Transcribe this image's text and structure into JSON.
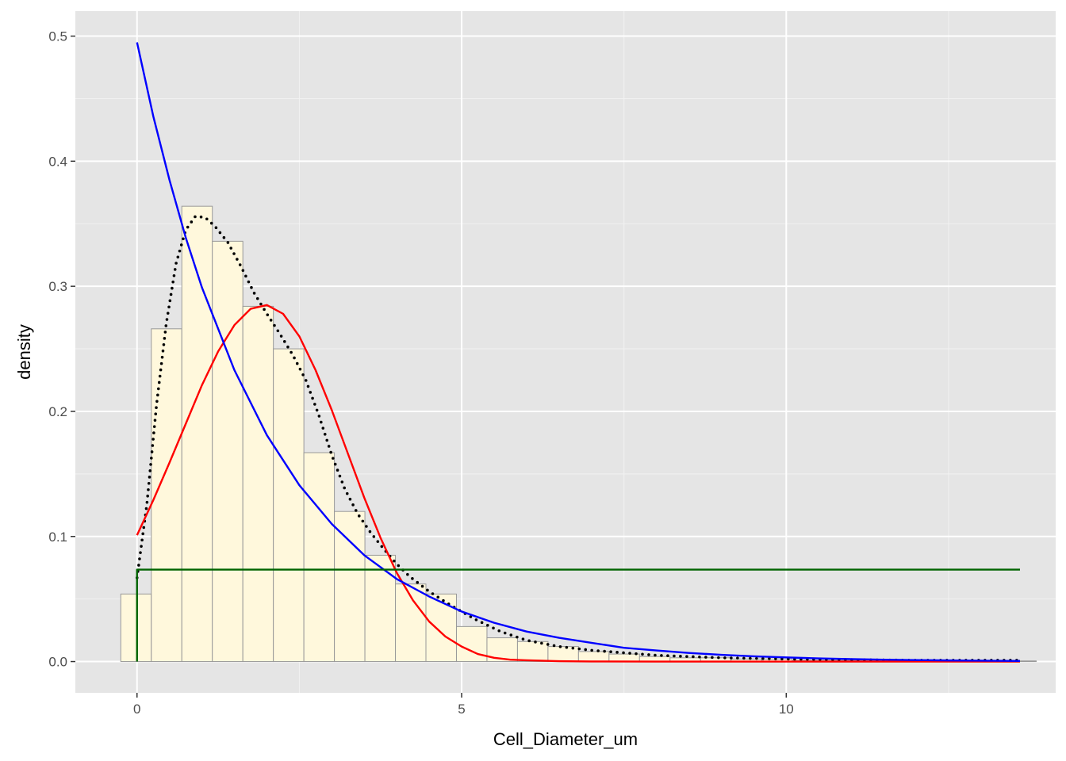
{
  "chart_data": {
    "type": "bar",
    "xlabel": "Cell_Diameter_um",
    "ylabel": "density",
    "xlim": [
      -0.95,
      14.15
    ],
    "ylim": [
      -0.025,
      0.52
    ],
    "x_ticks": [
      0,
      5,
      10
    ],
    "x_tick_labels": [
      "0",
      "5",
      "10"
    ],
    "y_ticks": [
      0.0,
      0.1,
      0.2,
      0.3,
      0.4,
      0.5
    ],
    "y_tick_labels": [
      "0.0",
      "0.1",
      "0.2",
      "0.3",
      "0.4",
      "0.5"
    ],
    "grid": true,
    "histogram": {
      "bin_width": 0.47,
      "bins_start": [
        -0.25,
        0.22,
        0.69,
        1.16,
        1.63,
        2.1,
        2.57,
        3.04,
        3.51,
        3.98,
        4.45,
        4.92,
        5.39,
        5.86,
        6.33,
        6.8,
        7.27,
        7.74,
        8.21,
        8.68,
        9.15,
        9.62,
        10.09,
        10.56,
        11.03,
        11.5,
        11.97,
        12.44,
        12.91,
        13.38
      ],
      "density": [
        0.054,
        0.266,
        0.364,
        0.336,
        0.284,
        0.25,
        0.167,
        0.12,
        0.085,
        0.062,
        0.054,
        0.028,
        0.019,
        0.016,
        0.012,
        0.008,
        0.006,
        0.004,
        0.003,
        0.003,
        0.002,
        0.002,
        0.001,
        0.001,
        0.001,
        0.001,
        0.001,
        0.0005,
        0.0005,
        0.0005
      ],
      "fill": "#fff8dc",
      "border": "#999999"
    },
    "series": [
      {
        "style": "dotted",
        "color": "#000000",
        "x": [
          0.0,
          0.15,
          0.3,
          0.45,
          0.6,
          0.75,
          0.9,
          1.05,
          1.2,
          1.4,
          1.6,
          1.8,
          2.0,
          2.2,
          2.4,
          2.6,
          2.8,
          3.0,
          3.2,
          3.4,
          3.6,
          3.8,
          4.0,
          4.2,
          4.5,
          4.8,
          5.2,
          5.6,
          6.0,
          6.5,
          7.0,
          7.5,
          8.0,
          9.0,
          10.0,
          11.0,
          12.0,
          13.0,
          13.6
        ],
        "y": [
          0.067,
          0.125,
          0.205,
          0.27,
          0.318,
          0.345,
          0.356,
          0.355,
          0.348,
          0.335,
          0.316,
          0.295,
          0.278,
          0.262,
          0.245,
          0.225,
          0.197,
          0.165,
          0.138,
          0.118,
          0.103,
          0.09,
          0.078,
          0.068,
          0.056,
          0.046,
          0.034,
          0.024,
          0.017,
          0.012,
          0.009,
          0.007,
          0.005,
          0.003,
          0.002,
          0.0015,
          0.001,
          0.001,
          0.001
        ]
      },
      {
        "style": "solid",
        "color": "#ff0000",
        "x": [
          0.0,
          0.25,
          0.5,
          0.75,
          1.0,
          1.25,
          1.5,
          1.75,
          2.0,
          2.25,
          2.5,
          2.75,
          3.0,
          3.25,
          3.5,
          3.75,
          4.0,
          4.25,
          4.5,
          4.75,
          5.0,
          5.25,
          5.5,
          5.75,
          6.0,
          6.5,
          7.0,
          8.0,
          10.0,
          13.6
        ],
        "y": [
          0.101,
          0.129,
          0.159,
          0.19,
          0.221,
          0.248,
          0.269,
          0.282,
          0.285,
          0.278,
          0.26,
          0.233,
          0.201,
          0.166,
          0.131,
          0.099,
          0.071,
          0.049,
          0.032,
          0.02,
          0.012,
          0.006,
          0.003,
          0.0015,
          0.001,
          0.0003,
          0.0001,
          0.0,
          0.0,
          0.0
        ]
      },
      {
        "style": "solid",
        "color": "#0000ff",
        "x": [
          0.0,
          0.25,
          0.5,
          0.75,
          1.0,
          1.5,
          2.0,
          2.5,
          3.0,
          3.5,
          4.0,
          4.5,
          5.0,
          5.5,
          6.0,
          6.5,
          7.0,
          7.5,
          8.0,
          8.5,
          9.0,
          9.5,
          10.0,
          10.5,
          11.0,
          11.5,
          12.0,
          12.5,
          13.0,
          13.6
        ],
        "y": [
          0.495,
          0.436,
          0.385,
          0.339,
          0.299,
          0.233,
          0.181,
          0.141,
          0.11,
          0.085,
          0.066,
          0.052,
          0.04,
          0.031,
          0.024,
          0.019,
          0.015,
          0.011,
          0.0089,
          0.0069,
          0.0054,
          0.0042,
          0.0033,
          0.0025,
          0.002,
          0.0015,
          0.0012,
          0.0009,
          0.0007,
          0.0005
        ]
      },
      {
        "style": "solid",
        "color": "#006400",
        "x": [
          0.0,
          0.0,
          13.6
        ],
        "y": [
          0.0,
          0.0735,
          0.0735
        ]
      }
    ]
  }
}
